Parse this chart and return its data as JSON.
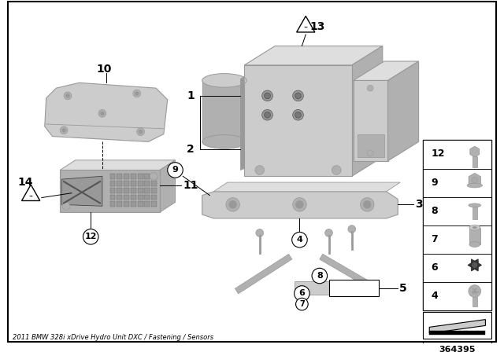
{
  "bg_color": "#ffffff",
  "part_number": "364395",
  "title": "2011 BMW 328i xDrive Hydro Unit DXC / Fastening / Sensors",
  "gray_dark": "#999999",
  "gray_mid": "#b0b0b0",
  "gray_light": "#cccccc",
  "gray_lighter": "#dedede",
  "black": "#000000",
  "white": "#ffffff"
}
